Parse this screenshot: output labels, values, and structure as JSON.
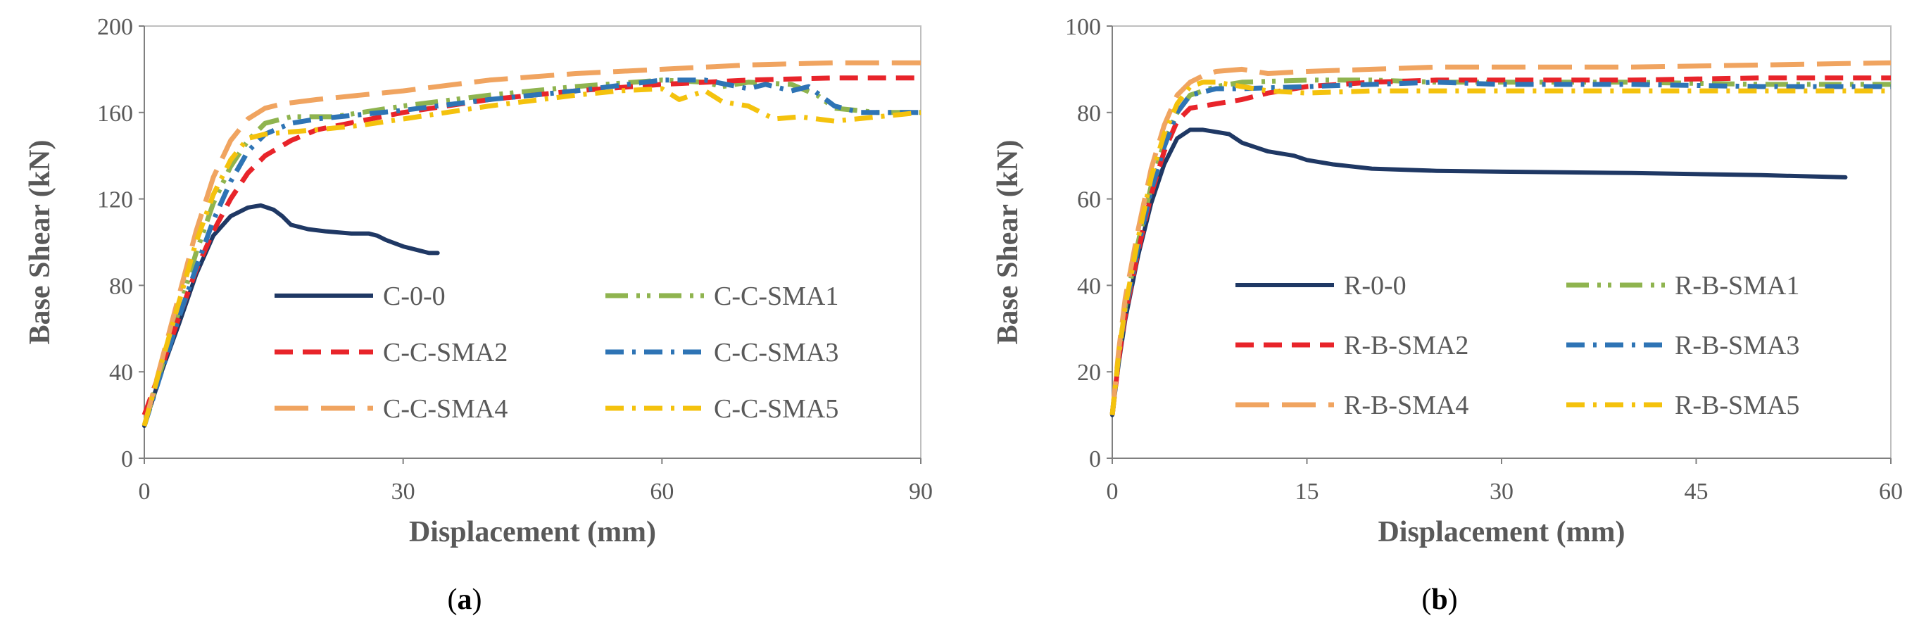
{
  "chart_data": [
    {
      "panel": "a",
      "type": "line",
      "caption": "(a)",
      "xlabel": "Displacement (mm)",
      "ylabel": "Base Shear (kN)",
      "xlim": [
        0,
        90
      ],
      "ylim": [
        0,
        200
      ],
      "xticks": [
        0,
        30,
        60,
        90
      ],
      "yticks": [
        0,
        40,
        80,
        120,
        160,
        200
      ],
      "grid": false,
      "legend": "center-right, 2 columns",
      "series": [
        {
          "name": "C-0-0",
          "color": "#1f3864",
          "dash": "solid",
          "x": [
            0,
            2,
            4,
            6,
            8,
            10,
            12,
            13.5,
            15,
            16,
            17,
            19,
            21,
            24,
            26,
            27,
            28,
            30,
            31,
            32,
            33,
            34
          ],
          "y": [
            15,
            40,
            62,
            85,
            103,
            112,
            116,
            117,
            115,
            112,
            108,
            106,
            105,
            104,
            104,
            103,
            101,
            98,
            97,
            96,
            95,
            95
          ]
        },
        {
          "name": "C-C-SMA1",
          "color": "#8fb44f",
          "dash": "dashdotdot",
          "x": [
            0,
            2,
            4,
            6,
            8,
            10,
            12,
            14,
            17,
            22,
            30,
            40,
            50,
            60,
            65,
            67,
            70,
            75,
            78,
            80,
            85,
            90
          ],
          "y": [
            15,
            42,
            68,
            95,
            118,
            135,
            147,
            155,
            158,
            158,
            163,
            168,
            172,
            175,
            174,
            172,
            174,
            173,
            168,
            162,
            160,
            160
          ]
        },
        {
          "name": "C-C-SMA2",
          "color": "#e8242a",
          "dash": "dash",
          "x": [
            0,
            2,
            4,
            6,
            8,
            10,
            12,
            14,
            17,
            20,
            25,
            30,
            40,
            50,
            60,
            70,
            80,
            90
          ],
          "y": [
            20,
            42,
            65,
            87,
            105,
            120,
            132,
            140,
            147,
            152,
            156,
            160,
            166,
            170,
            173,
            175,
            176,
            176
          ]
        },
        {
          "name": "C-C-SMA3",
          "color": "#2e74b5",
          "dash": "dashdot",
          "x": [
            0,
            2,
            4,
            6,
            8,
            10,
            12,
            14,
            17,
            20,
            25,
            30,
            40,
            50,
            60,
            65,
            70,
            72,
            75,
            77,
            80,
            83,
            90
          ],
          "y": [
            15,
            40,
            65,
            88,
            110,
            128,
            142,
            150,
            155,
            157,
            159,
            161,
            166,
            170,
            175,
            175,
            171,
            173,
            170,
            172,
            163,
            160,
            160
          ]
        },
        {
          "name": "C-C-SMA4",
          "color": "#f0a460",
          "dash": "longdash",
          "x": [
            0,
            2,
            4,
            6,
            8,
            10,
            12,
            14,
            16,
            20,
            25,
            30,
            40,
            50,
            60,
            70,
            80,
            90
          ],
          "y": [
            15,
            45,
            75,
            105,
            130,
            147,
            157,
            162,
            164,
            166,
            168,
            170,
            175,
            178,
            180,
            182,
            183,
            183
          ]
        },
        {
          "name": "C-C-SMA5",
          "color": "#f4c20d",
          "dash": "dashdot",
          "x": [
            0,
            2,
            4,
            6,
            8,
            10,
            12,
            14,
            17,
            20,
            25,
            30,
            40,
            50,
            55,
            60,
            62,
            65,
            67,
            70,
            73,
            76,
            80,
            85,
            90
          ],
          "y": [
            15,
            44,
            72,
            100,
            122,
            138,
            148,
            150,
            151,
            152,
            154,
            157,
            163,
            168,
            170,
            171,
            166,
            170,
            165,
            163,
            157,
            158,
            156,
            158,
            160
          ]
        }
      ]
    },
    {
      "panel": "b",
      "type": "line",
      "caption": "(b)",
      "xlabel": "Displacement (mm)",
      "ylabel": "Base Shear (kN)",
      "xlim": [
        0,
        60
      ],
      "ylim": [
        0,
        100
      ],
      "xticks": [
        0,
        15,
        30,
        45,
        60
      ],
      "yticks": [
        0,
        20,
        40,
        60,
        80,
        100
      ],
      "grid": false,
      "legend": "center-right, 2 columns",
      "series": [
        {
          "name": "R-0-0",
          "color": "#1f3864",
          "dash": "solid",
          "x": [
            0,
            0.5,
            1,
            2,
            3,
            4,
            5,
            6,
            7,
            8,
            9,
            10,
            12,
            14,
            15,
            17,
            20,
            25,
            30,
            40,
            50,
            56.5
          ],
          "y": [
            10,
            22,
            32,
            47,
            59,
            68,
            74,
            76,
            76,
            75.5,
            75,
            73,
            71,
            70,
            69,
            68,
            67,
            66.5,
            66.3,
            66,
            65.5,
            65
          ]
        },
        {
          "name": "R-B-SMA1",
          "color": "#8fb44f",
          "dash": "dashdotdot",
          "x": [
            0,
            0.5,
            1,
            2,
            3,
            4,
            5,
            6,
            8,
            10,
            15,
            20,
            25,
            30,
            40,
            50,
            60
          ],
          "y": [
            10,
            24,
            35,
            50,
            63,
            73,
            80,
            84,
            86,
            87,
            87.5,
            87.5,
            87,
            87,
            87,
            86.5,
            86.5
          ]
        },
        {
          "name": "R-B-SMA2",
          "color": "#e8242a",
          "dash": "dash",
          "x": [
            0,
            0.5,
            1,
            2,
            3,
            4,
            5,
            6,
            8,
            10,
            12,
            15,
            20,
            25,
            30,
            40,
            50,
            60
          ],
          "y": [
            10,
            23,
            33,
            48,
            61,
            71,
            78,
            81,
            82,
            83,
            84.5,
            86,
            87,
            87.5,
            87.5,
            87.5,
            88,
            88
          ]
        },
        {
          "name": "R-B-SMA3",
          "color": "#2e74b5",
          "dash": "dashdot",
          "x": [
            0,
            0.5,
            1,
            2,
            3,
            4,
            5,
            6,
            8,
            10,
            15,
            20,
            25,
            30,
            40,
            50,
            60
          ],
          "y": [
            10,
            24,
            34,
            49,
            62,
            72,
            80,
            84,
            85.5,
            85.5,
            86,
            86.5,
            87,
            86.5,
            86.5,
            86,
            86
          ]
        },
        {
          "name": "R-B-SMA4",
          "color": "#f0a460",
          "dash": "longdash",
          "x": [
            0,
            0.5,
            1,
            2,
            3,
            4,
            5,
            6,
            7,
            8,
            10,
            12,
            15,
            20,
            25,
            30,
            40,
            50,
            60
          ],
          "y": [
            10,
            25,
            37,
            53,
            67,
            77,
            84,
            87,
            88.5,
            89.5,
            90,
            89,
            89.5,
            90,
            90.5,
            90.5,
            90.5,
            91,
            91.5
          ]
        },
        {
          "name": "R-B-SMA5",
          "color": "#f4c20d",
          "dash": "dashdot",
          "x": [
            0,
            0.5,
            1,
            2,
            3,
            4,
            5,
            6,
            7,
            8,
            10,
            12,
            15,
            20,
            25,
            30,
            40,
            50,
            60
          ],
          "y": [
            10,
            24,
            35,
            51,
            65,
            75,
            82,
            86,
            87,
            87,
            86,
            85,
            84.5,
            85,
            85,
            85,
            85,
            85,
            85
          ]
        }
      ]
    }
  ]
}
